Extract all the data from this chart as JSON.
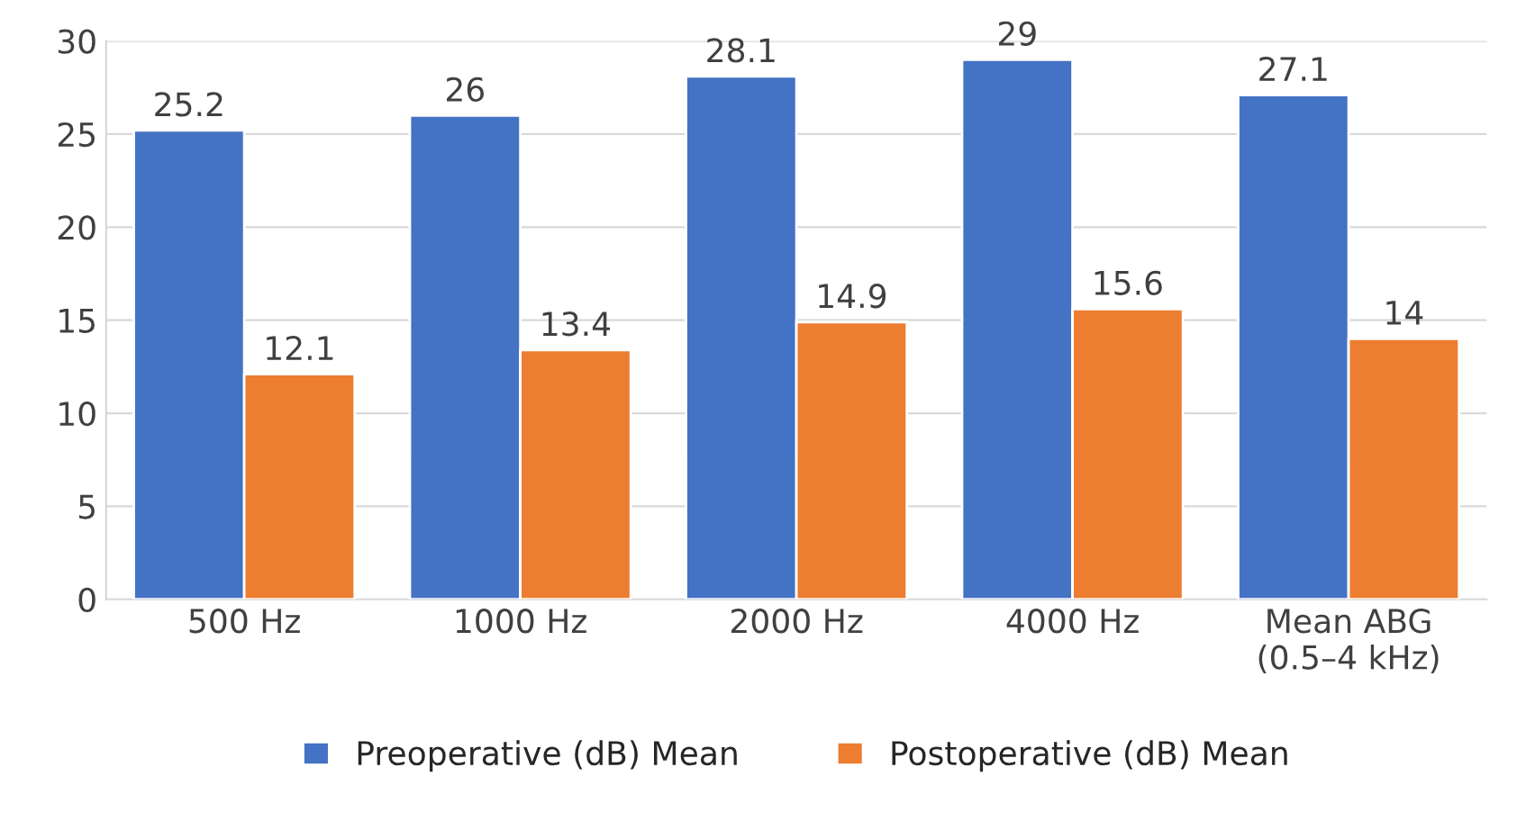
{
  "chart_data": {
    "type": "bar",
    "categories": [
      "500 Hz",
      "1000 Hz",
      "2000 Hz",
      "4000 Hz",
      "Mean ABG\n(0.5–4 kHz)"
    ],
    "series": [
      {
        "name": "Preoperative (dB) Mean",
        "color": "#4472c4",
        "values": [
          25.2,
          26,
          28.1,
          29,
          27.1
        ]
      },
      {
        "name": "Postoperative (dB) Mean",
        "color": "#ed7d31",
        "values": [
          12.1,
          13.4,
          14.9,
          15.6,
          14
        ]
      }
    ],
    "ylim": [
      0,
      30
    ],
    "yticks": [
      0,
      5,
      10,
      15,
      20,
      25,
      30
    ],
    "grid": "y",
    "legend": "bottom",
    "data_labels": true
  }
}
